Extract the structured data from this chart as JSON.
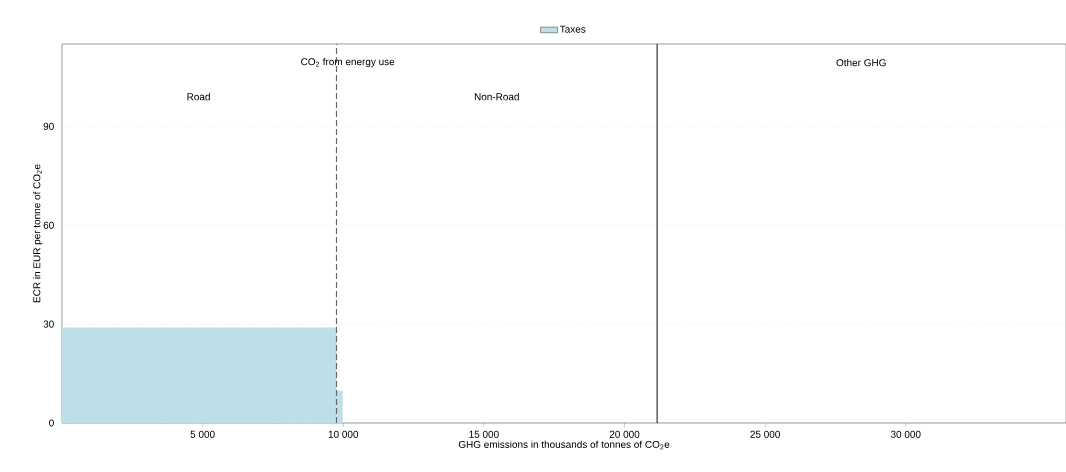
{
  "chart_data": {
    "type": "histogram",
    "xlabel": "GHG emissions in thousands of tonnes of CO$_{2}$e",
    "ylabel": "ECR in EUR per tonne of CO$_{2}$e",
    "bins": [
      0,
      9760,
      9980
    ],
    "series": [
      {
        "name": "Taxes",
        "color": "#bde0e8",
        "values": [
          29,
          9.8
        ]
      }
    ],
    "xlim": [
      0,
      35700
    ],
    "ylim": [
      0,
      115
    ],
    "xticks": [
      {
        "value": 5000,
        "label": "5 000"
      },
      {
        "value": 10000,
        "label": "10 000"
      },
      {
        "value": 15000,
        "label": "15 000"
      },
      {
        "value": 20000,
        "label": "20 000"
      },
      {
        "value": 25000,
        "label": "25 000"
      },
      {
        "value": 30000,
        "label": "30 000"
      }
    ],
    "yticks": [
      0,
      30,
      60,
      90
    ],
    "grid": "y",
    "legend": "top",
    "ref_lines": [
      {
        "axis": "x",
        "value": 9760,
        "line_style": "dashed",
        "color": "#666666"
      },
      {
        "axis": "x",
        "value": 21160,
        "line_style": "solid",
        "color": "#333333"
      }
    ],
    "annotations": [
      "CO$_{2}$ from energy use",
      "Road",
      "Non-Road",
      "Other GHG"
    ]
  }
}
